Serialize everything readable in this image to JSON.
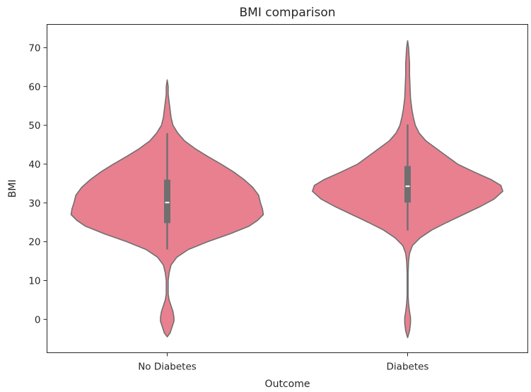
{
  "chart_data": {
    "type": "violin",
    "title": "BMI comparison",
    "xlabel": "Outcome",
    "ylabel": "BMI",
    "categories": [
      "No Diabetes",
      "Diabetes"
    ],
    "ylim": [
      -8.6,
      76.0
    ],
    "yticks": [
      0,
      10,
      20,
      30,
      40,
      50,
      60,
      70
    ],
    "grid": false,
    "colors": {
      "fill": "#e8808f",
      "edge": "#6f6f6f",
      "box": "#6f6f6f",
      "median": "#ffffff",
      "axis": "#262626"
    },
    "series": [
      {
        "category": "No Diabetes",
        "min": -4.5,
        "max": 61.7,
        "whisker_low": 18.0,
        "q1": 24.8,
        "median": 30.1,
        "q3": 36.0,
        "whisker_high": 48.0,
        "density": [
          [
            -4.5,
            0.0
          ],
          [
            -3.5,
            0.03
          ],
          [
            -2.0,
            0.05
          ],
          [
            -0.5,
            0.07
          ],
          [
            0.5,
            0.07
          ],
          [
            2.0,
            0.06
          ],
          [
            3.5,
            0.04
          ],
          [
            5.0,
            0.02
          ],
          [
            6.5,
            0.01
          ],
          [
            8.0,
            0.01
          ],
          [
            10.0,
            0.01
          ],
          [
            12.0,
            0.02
          ],
          [
            14.0,
            0.04
          ],
          [
            16.0,
            0.1
          ],
          [
            18.0,
            0.22
          ],
          [
            20.0,
            0.42
          ],
          [
            22.0,
            0.65
          ],
          [
            24.0,
            0.85
          ],
          [
            25.5,
            0.94
          ],
          [
            27.0,
            1.0
          ],
          [
            28.5,
            0.99
          ],
          [
            30.0,
            0.97
          ],
          [
            32.0,
            0.95
          ],
          [
            34.0,
            0.89
          ],
          [
            36.0,
            0.8
          ],
          [
            38.0,
            0.69
          ],
          [
            40.0,
            0.56
          ],
          [
            42.0,
            0.42
          ],
          [
            44.0,
            0.29
          ],
          [
            46.0,
            0.18
          ],
          [
            48.0,
            0.11
          ],
          [
            50.0,
            0.06
          ],
          [
            52.0,
            0.04
          ],
          [
            54.0,
            0.03
          ],
          [
            56.0,
            0.02
          ],
          [
            58.0,
            0.01
          ],
          [
            60.0,
            0.01
          ],
          [
            61.7,
            0.0
          ]
        ]
      },
      {
        "category": "Diabetes",
        "min": -4.7,
        "max": 71.8,
        "whisker_low": 22.9,
        "q1": 30.1,
        "median": 34.3,
        "q3": 39.5,
        "whisker_high": 50.2,
        "density": [
          [
            -4.7,
            0.0
          ],
          [
            -3.0,
            0.02
          ],
          [
            -1.0,
            0.03
          ],
          [
            0.5,
            0.03
          ],
          [
            2.0,
            0.02
          ],
          [
            4.0,
            0.01
          ],
          [
            6.0,
            0.005
          ],
          [
            9.0,
            0.005
          ],
          [
            12.0,
            0.005
          ],
          [
            15.0,
            0.01
          ],
          [
            17.0,
            0.02
          ],
          [
            19.0,
            0.05
          ],
          [
            21.0,
            0.13
          ],
          [
            23.0,
            0.25
          ],
          [
            25.0,
            0.41
          ],
          [
            27.0,
            0.58
          ],
          [
            29.0,
            0.75
          ],
          [
            31.0,
            0.9
          ],
          [
            33.0,
            0.99
          ],
          [
            34.5,
            0.97
          ],
          [
            36.0,
            0.87
          ],
          [
            38.0,
            0.69
          ],
          [
            40.0,
            0.52
          ],
          [
            42.0,
            0.41
          ],
          [
            44.0,
            0.3
          ],
          [
            46.0,
            0.19
          ],
          [
            48.0,
            0.12
          ],
          [
            50.0,
            0.08
          ],
          [
            52.0,
            0.06
          ],
          [
            54.0,
            0.045
          ],
          [
            57.0,
            0.03
          ],
          [
            60.0,
            0.025
          ],
          [
            63.0,
            0.02
          ],
          [
            66.0,
            0.02
          ],
          [
            68.0,
            0.015
          ],
          [
            70.0,
            0.01
          ],
          [
            71.8,
            0.0
          ]
        ]
      }
    ]
  }
}
